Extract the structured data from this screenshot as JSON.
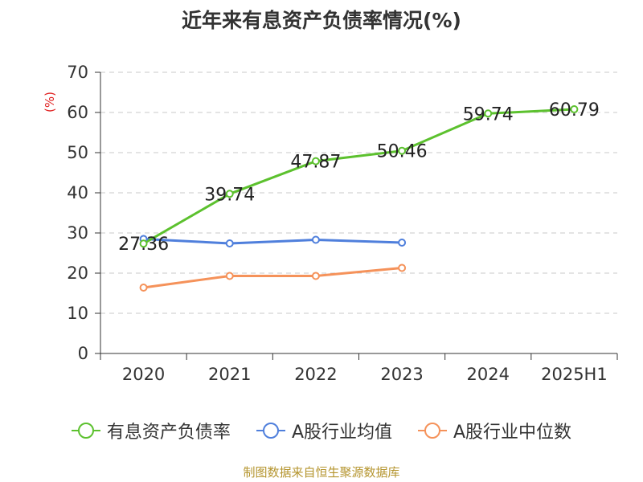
{
  "chart_data": {
    "type": "line",
    "title": "近年来有息资产负债率情况(%)",
    "ylabel": "(%)",
    "ylim": [
      0,
      70
    ],
    "yticks": [
      0,
      10,
      20,
      30,
      40,
      50,
      60,
      70
    ],
    "grid": true,
    "legend_position": "bottom",
    "categories": [
      "2020",
      "2021",
      "2022",
      "2023",
      "2024",
      "2025H1"
    ],
    "series": [
      {
        "name": "有息资产负债率",
        "color": "#5cc12e",
        "show_labels": true,
        "values": [
          27.36,
          39.74,
          47.87,
          50.46,
          59.74,
          60.79
        ]
      },
      {
        "name": "A股行业均值",
        "color": "#4f7fdc",
        "show_labels": false,
        "values": [
          28.5,
          27.4,
          28.3,
          27.6,
          null,
          null
        ]
      },
      {
        "name": "A股行业中位数",
        "color": "#f5925a",
        "show_labels": false,
        "values": [
          16.4,
          19.3,
          19.3,
          21.3,
          null,
          null
        ]
      }
    ]
  },
  "source": "制图数据来自恒生聚源数据库"
}
